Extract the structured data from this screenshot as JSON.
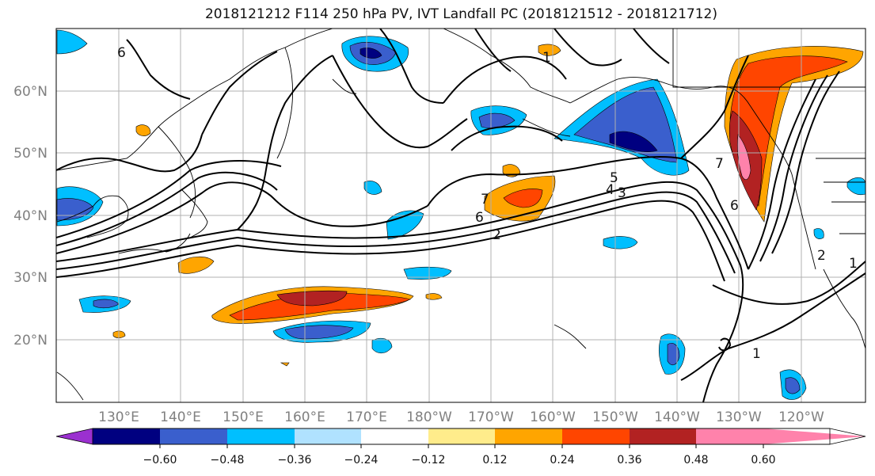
{
  "title": "2018121212 F114 250 hPa PV, IVT Landfall PC (2018121512 - 2018121712)",
  "lat_labels": [
    "60°N",
    "50°N",
    "40°N",
    "30°N",
    "20°N"
  ],
  "lon_labels": [
    "130°E",
    "140°E",
    "150°E",
    "160°E",
    "170°E",
    "180°W",
    "170°W",
    "160°W",
    "150°W",
    "140°W",
    "130°W",
    "120°W"
  ],
  "colorbar": {
    "ticks": [
      "−0.60",
      "−0.48",
      "−0.36",
      "−0.24",
      "−0.12",
      "0.12",
      "0.24",
      "0.36",
      "0.48",
      "0.60"
    ],
    "colors": [
      "#9b30d0",
      "#000080",
      "#3a5fcd",
      "#00bfff",
      "#b0e2ff",
      "#ffffff",
      "#ffec8b",
      "#ffa500",
      "#ff4500",
      "#b22222",
      "#ff82ab"
    ]
  },
  "contour_labels": [
    "6",
    "1",
    "7",
    "5",
    "4",
    "3",
    "6",
    "2",
    "7",
    "6",
    "1",
    "2",
    "1"
  ]
}
